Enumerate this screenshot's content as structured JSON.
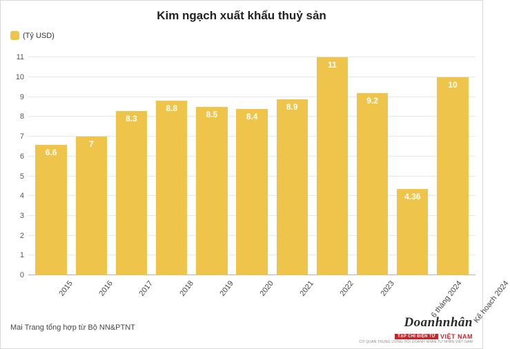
{
  "chart": {
    "type": "bar",
    "title": "Kim ngạch xuất khẩu thuỷ sản",
    "title_fontsize": 17,
    "legend_label": "(Tỷ USD)",
    "legend_color": "#eec54a",
    "bar_color": "#eec54a",
    "value_label_color": "#ffffff",
    "background_color": "#ffffff",
    "grid_color": "#e6e6e6",
    "axis_color": "#b0b0b0",
    "ylim_min": 0,
    "ylim_max": 11.5,
    "ytick_step": 1,
    "yticks": [
      "0",
      "1",
      "2",
      "3",
      "4",
      "5",
      "6",
      "7",
      "8",
      "9",
      "10",
      "11"
    ],
    "bar_width_ratio": 0.78,
    "categories": [
      "2015",
      "2016",
      "2017",
      "2018",
      "2019",
      "2020",
      "2021",
      "2022",
      "2023",
      "6 tháng 2024",
      "Kế hoạch 2024"
    ],
    "values": [
      6.6,
      7,
      8.3,
      8.8,
      8.5,
      8.4,
      8.9,
      11,
      9.2,
      4.36,
      10
    ],
    "value_labels": [
      "6.6",
      "7",
      "8.3",
      "8.8",
      "8.5",
      "8.4",
      "8.9",
      "11",
      "9.2",
      "4.36",
      "10"
    ],
    "x_label_rotation_deg": -52,
    "x_label_fontsize": 11,
    "y_label_fontsize": 11,
    "value_label_fontsize": 12
  },
  "footer": {
    "source_text": "Mai Trang tổng hợp từ Bộ NN&PTNT"
  },
  "brand": {
    "main": "Doanhnhân",
    "red_box": "TẠP CHÍ ĐIỆN TỬ",
    "vn": "VIỆT NAM",
    "tagline": "CƠ QUAN TRUNG ƯƠNG HỘI DOANH NHÂN TƯ NHÂN VIỆT NAM"
  }
}
